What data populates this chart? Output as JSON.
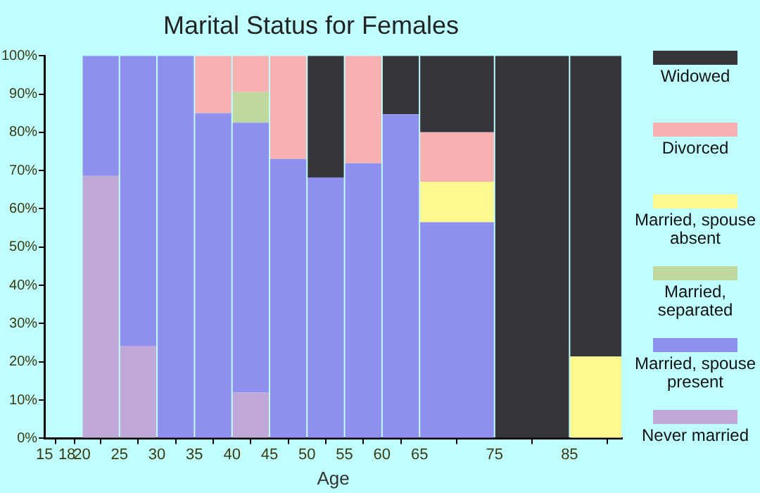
{
  "chart_data": {
    "type": "bar",
    "stacked": true,
    "title": "Marital Status for Females",
    "xlabel": "Age",
    "x": [
      22.5,
      27.5,
      32.5,
      37.5,
      42.5,
      47.5,
      52.5,
      57.5,
      62.5,
      70,
      80,
      88.5
    ],
    "xlim": [
      15,
      92
    ],
    "xticks": [
      15,
      18,
      20,
      25,
      30,
      35,
      40,
      45,
      50,
      55,
      60,
      65,
      75,
      85
    ],
    "ylim": [
      0,
      100
    ],
    "yticks": [
      {
        "value": 0,
        "label": "0%"
      },
      {
        "value": 10,
        "label": "10%"
      },
      {
        "value": 20,
        "label": "20%"
      },
      {
        "value": 30,
        "label": "30%"
      },
      {
        "value": 40,
        "label": "40%"
      },
      {
        "value": 50,
        "label": "50%"
      },
      {
        "value": 60,
        "label": "60%"
      },
      {
        "value": 70,
        "label": "70%"
      },
      {
        "value": 80,
        "label": "80%"
      },
      {
        "value": 90,
        "label": "90%"
      },
      {
        "value": 100,
        "label": "100%"
      }
    ],
    "legend": "right",
    "grid": false,
    "series": [
      {
        "name": "Never married",
        "color": "#c0a8d8",
        "values": [
          68.6,
          24.2,
          0,
          0,
          12,
          0,
          0,
          0,
          0,
          0,
          0,
          0
        ]
      },
      {
        "name": "Married, spouse present",
        "color": "#8f8ff0",
        "values": [
          31.4,
          75.8,
          100,
          85,
          70.5,
          73,
          68.2,
          71.9,
          84.7,
          56.5,
          0,
          0
        ]
      },
      {
        "name": "Married, separated",
        "color": "#c0d8a0",
        "values": [
          0,
          0,
          0,
          0,
          8,
          0,
          0,
          0,
          0,
          0,
          0,
          0
        ]
      },
      {
        "name": "Married, spouse absent",
        "color": "#fff88f",
        "values": [
          0,
          0,
          0,
          0,
          0,
          0,
          0,
          0,
          0,
          10.6,
          0,
          21.4
        ]
      },
      {
        "name": "Divorced",
        "color": "#f8b0b0",
        "values": [
          0,
          0,
          0,
          15,
          9.5,
          27,
          0,
          28.1,
          0,
          12.9,
          0,
          0
        ]
      },
      {
        "name": "Widowed",
        "color": "#35363c",
        "values": [
          0,
          0,
          0,
          0,
          0,
          0,
          31.8,
          0,
          15.3,
          20,
          100,
          78.6
        ]
      }
    ]
  }
}
